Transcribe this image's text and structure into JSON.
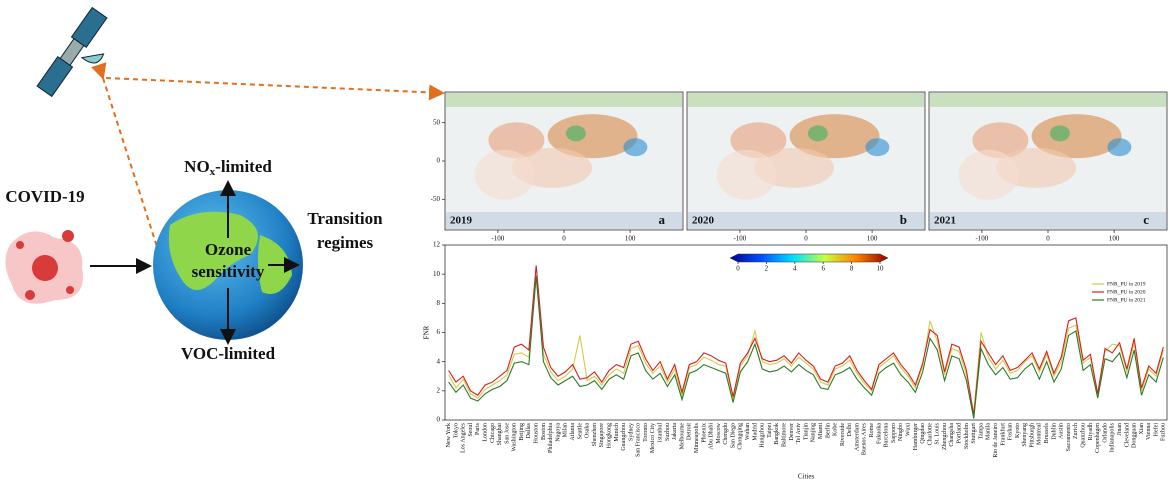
{
  "diagram": {
    "input": "COVID-19",
    "nox_prefix": "NO",
    "nox_sub": "x",
    "nox_suffix": "-limited",
    "center": [
      "Ozone",
      "sensitivity"
    ],
    "voc": "VOC-limited",
    "output": [
      "Transition",
      "regimes"
    ]
  },
  "maps": {
    "panels": [
      {
        "year": "2019",
        "letter": "a"
      },
      {
        "year": "2020",
        "letter": "b"
      },
      {
        "year": "2021",
        "letter": "c"
      }
    ],
    "xlim": [
      -180,
      180
    ],
    "xticks": [
      -100,
      0,
      100
    ],
    "ylim": [
      -90,
      90
    ],
    "yticks": [
      50,
      0,
      -50
    ],
    "colorbar": {
      "lim": [
        0,
        10
      ],
      "ticks": [
        0,
        2,
        4,
        6,
        8,
        10
      ]
    }
  },
  "chart_data": {
    "type": "line",
    "xlabel": "Cities",
    "ylabel": "FNR",
    "ylim": [
      0,
      12
    ],
    "yticks": [
      0,
      2,
      4,
      6,
      8,
      10,
      12
    ],
    "legend": "upper right",
    "categories": [
      "New York",
      "Tokyo",
      "Los Angeles",
      "Seoul",
      "Paris",
      "London",
      "Chicago",
      "Shanghai",
      "San Jose",
      "Washington",
      "Beijing",
      "Dallas",
      "Houston",
      "Boston",
      "Philadelphia",
      "Nagoya",
      "Milan",
      "Atlanta",
      "Seattle",
      "Osaka",
      "Shenzhen",
      "Singapore",
      "Hongkong",
      "Munich",
      "Guangzhou",
      "Sydney",
      "San Francisco",
      "Toronto",
      "Mexico City",
      "Istanbul",
      "Suzhou",
      "Jakarta",
      "Melbourne",
      "Detroit",
      "Minneapolis",
      "Phoenix",
      "Abu Dhabi",
      "Moscow",
      "Chengdu",
      "San Diego",
      "Chongqing",
      "Wuhan",
      "Madrid",
      "Hangzhou",
      "Taipei",
      "Bangkok",
      "Baltimore",
      "Denver",
      "Tel Aviv",
      "Tianjin",
      "Nanjing",
      "Miami",
      "Berlin",
      "Kobe",
      "Riverside",
      "Delhi",
      "Amsterdam",
      "Buenos Aires",
      "Rome",
      "Fukuoka",
      "Barcelona",
      "Sapporo",
      "Ningbo",
      "Wuxi",
      "Hamburger",
      "Qingdao",
      "Charlotte",
      "St. Louis",
      "Zhengzhou",
      "Changsha",
      "Portland",
      "Stockholm",
      "Stuttgart",
      "Tampa",
      "Manila",
      "Rio de Janeiro",
      "Frankfurt",
      "Foshan",
      "Kyoto",
      "Shenyang",
      "Pittsburgh",
      "Montreal",
      "Brussels",
      "Dublin",
      "Austin",
      "Sacramento",
      "Zurich",
      "Quanzhou",
      "Riyadh",
      "Copenhagen",
      "Orlando",
      "Indianapolis",
      "Jinan",
      "Cleveland",
      "Dongguan",
      "Xian",
      "Vienna",
      "Hefei",
      "Fuzhou"
    ],
    "series": [
      {
        "name": "FNR_PU in 2019",
        "color": "#d8c84a",
        "values": [
          3.1,
          2.2,
          2.8,
          1.8,
          1.5,
          2.1,
          2.4,
          2.7,
          3.1,
          4.5,
          4.6,
          4.3,
          9.8,
          4.5,
          3.3,
          2.7,
          3.0,
          3.5,
          5.8,
          2.7,
          3.0,
          2.4,
          3.1,
          3.5,
          3.2,
          4.9,
          5.1,
          3.9,
          3.2,
          3.7,
          2.6,
          3.5,
          1.7,
          3.6,
          3.8,
          4.3,
          4.1,
          3.8,
          3.7,
          1.4,
          3.7,
          4.4,
          6.1,
          4.0,
          3.8,
          3.9,
          4.2,
          3.7,
          4.3,
          3.9,
          3.5,
          2.6,
          2.4,
          3.5,
          3.7,
          4.1,
          3.2,
          2.5,
          2.0,
          3.6,
          4.0,
          4.4,
          3.6,
          3.0,
          2.2,
          3.7,
          6.8,
          5.4,
          3.1,
          4.9,
          4.7,
          3.1,
          0.5,
          6.0,
          4.3,
          3.5,
          4.1,
          3.2,
          3.4,
          4.0,
          4.4,
          3.3,
          4.5,
          3.0,
          4.0,
          6.3,
          6.5,
          3.9,
          4.3,
          1.7,
          4.7,
          5.2,
          5.1,
          3.3,
          5.3,
          2.0,
          3.5,
          3.0,
          4.8
        ]
      },
      {
        "name": "FNR_PU in 2020",
        "color": "#d62020",
        "values": [
          3.4,
          2.6,
          3.0,
          2.0,
          1.7,
          2.4,
          2.6,
          3.0,
          3.4,
          5.0,
          5.2,
          4.8,
          10.6,
          5.0,
          3.6,
          3.0,
          3.3,
          3.8,
          2.8,
          2.9,
          3.3,
          2.6,
          3.4,
          3.8,
          3.6,
          5.2,
          5.4,
          4.2,
          3.4,
          4.0,
          2.8,
          3.8,
          1.9,
          3.8,
          4.0,
          4.6,
          4.4,
          4.1,
          3.9,
          1.6,
          3.9,
          4.6,
          5.6,
          4.2,
          4.0,
          4.1,
          4.4,
          3.9,
          4.6,
          4.1,
          3.7,
          2.8,
          2.6,
          3.7,
          3.9,
          4.4,
          3.4,
          2.7,
          2.1,
          3.8,
          4.2,
          4.6,
          3.8,
          3.2,
          2.4,
          3.9,
          6.2,
          5.8,
          3.3,
          5.2,
          5.0,
          3.4,
          0.3,
          5.4,
          4.6,
          3.8,
          4.4,
          3.4,
          3.6,
          4.1,
          4.6,
          3.5,
          4.7,
          3.2,
          4.3,
          6.8,
          7.0,
          4.1,
          4.5,
          1.8,
          4.9,
          4.6,
          5.3,
          3.5,
          5.6,
          2.2,
          3.7,
          3.2,
          5.0
        ]
      },
      {
        "name": "FNR_PU in 2021",
        "color": "#2a7a2a",
        "values": [
          2.6,
          1.9,
          2.4,
          1.5,
          1.3,
          1.8,
          2.1,
          2.3,
          2.7,
          3.9,
          4.0,
          3.8,
          9.9,
          4.0,
          2.9,
          2.4,
          2.7,
          3.0,
          2.3,
          2.4,
          2.7,
          2.1,
          2.8,
          3.1,
          2.8,
          4.4,
          4.6,
          3.4,
          2.8,
          3.2,
          2.3,
          3.1,
          1.4,
          3.2,
          3.4,
          3.8,
          3.6,
          3.4,
          3.2,
          1.2,
          3.3,
          4.0,
          5.2,
          3.5,
          3.3,
          3.4,
          3.7,
          3.3,
          3.8,
          3.4,
          3.1,
          2.2,
          2.1,
          3.1,
          3.3,
          3.6,
          2.8,
          2.2,
          1.7,
          3.2,
          3.6,
          3.9,
          3.1,
          2.6,
          1.9,
          3.3,
          5.6,
          4.8,
          2.7,
          4.4,
          4.2,
          2.7,
          0.1,
          4.9,
          3.8,
          3.1,
          3.6,
          2.8,
          2.9,
          3.5,
          3.9,
          2.8,
          4.0,
          2.6,
          3.5,
          5.8,
          6.1,
          3.4,
          3.8,
          1.5,
          4.2,
          4.0,
          4.6,
          2.9,
          4.8,
          1.7,
          3.1,
          2.6,
          4.3
        ]
      }
    ]
  }
}
